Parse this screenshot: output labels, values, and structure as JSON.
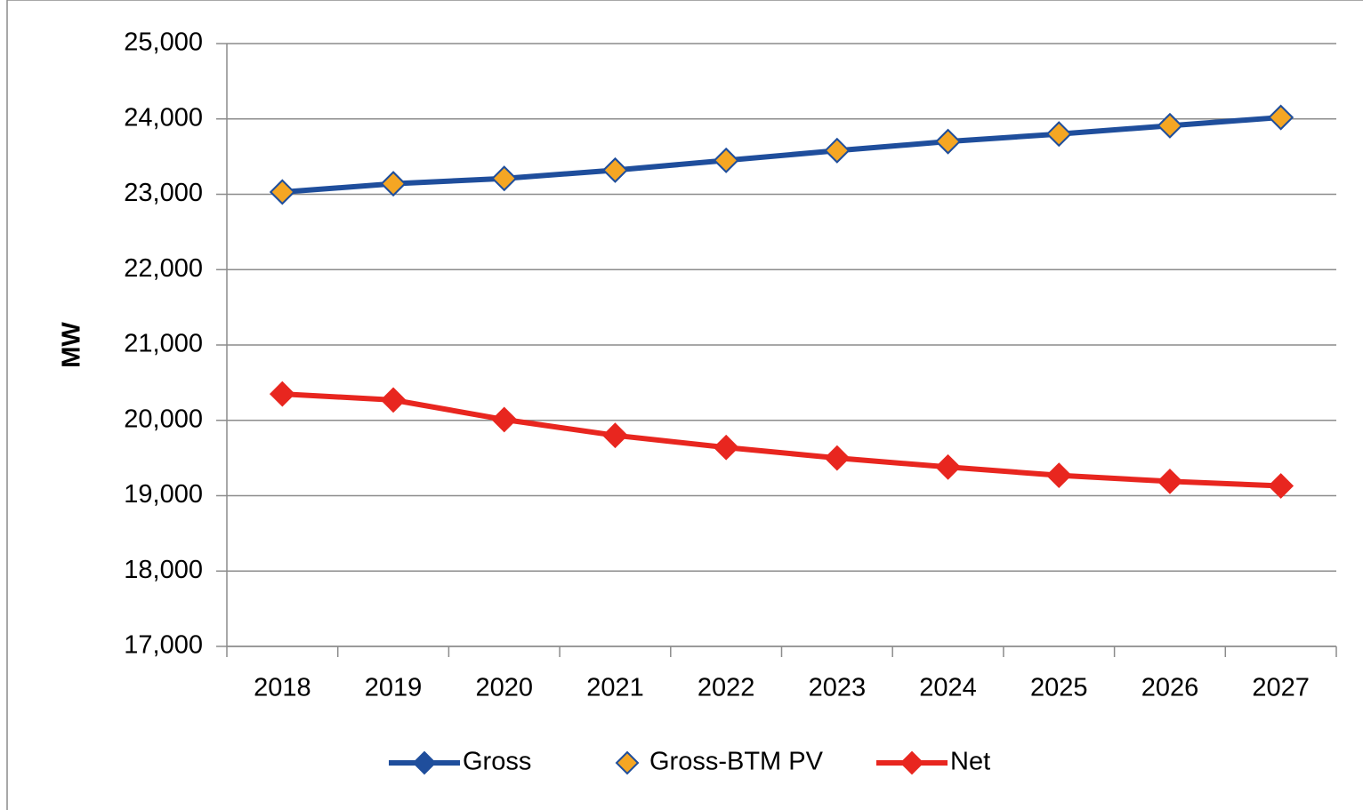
{
  "chart_data": {
    "type": "line",
    "y_label": "MW",
    "categories": [
      "2018",
      "2019",
      "2020",
      "2021",
      "2022",
      "2023",
      "2024",
      "2025",
      "2026",
      "2027"
    ],
    "series": [
      {
        "name": "Gross",
        "color": "#1f4e9c",
        "marker_color": "#1f4e9c",
        "marker_edge": "#1f4e9c",
        "show_line": true,
        "values": [
          23030,
          23140,
          23210,
          23320,
          23450,
          23580,
          23700,
          23800,
          23910,
          24020
        ]
      },
      {
        "name": "Gross-BTM PV",
        "color": "#1f4e9c",
        "marker_color": "#f5a623",
        "marker_edge": "#1f4e9c",
        "show_line": false,
        "values": [
          23030,
          23140,
          23210,
          23320,
          23450,
          23580,
          23700,
          23800,
          23910,
          24020
        ]
      },
      {
        "name": "Net",
        "color": "#e8261f",
        "marker_color": "#e8261f",
        "marker_edge": "#e8261f",
        "show_line": true,
        "values": [
          20350,
          20270,
          20010,
          19800,
          19640,
          19500,
          19380,
          19270,
          19190,
          19130
        ]
      }
    ],
    "ylim": [
      17000,
      25000
    ],
    "yticks": [
      {
        "value": 17000,
        "label": "17,000"
      },
      {
        "value": 18000,
        "label": "18,000"
      },
      {
        "value": 19000,
        "label": "19,000"
      },
      {
        "value": 20000,
        "label": "20,000"
      },
      {
        "value": 21000,
        "label": "21,000"
      },
      {
        "value": 22000,
        "label": "22,000"
      },
      {
        "value": 23000,
        "label": "23,000"
      },
      {
        "value": 24000,
        "label": "24,000"
      },
      {
        "value": 25000,
        "label": "25,000"
      }
    ],
    "grid": true,
    "legend": "bottom"
  }
}
